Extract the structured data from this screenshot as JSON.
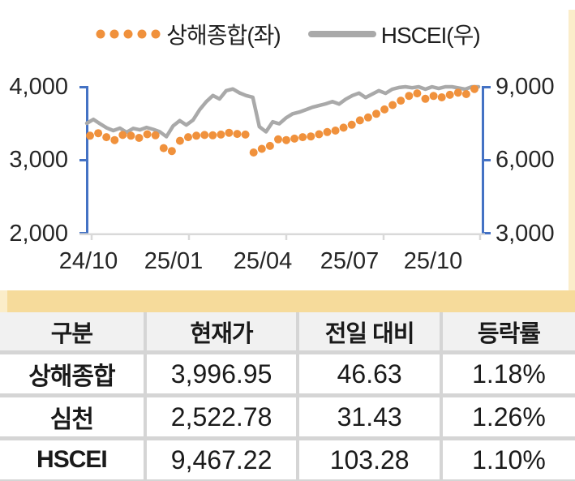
{
  "legend": {
    "series1_label": "상해종합(좌)",
    "series2_label": "HSCEI(우)"
  },
  "colors": {
    "orange_dots": "#F0913C",
    "gray_line": "#A9A9A9",
    "axis_blue": "#4472C4",
    "axis_gray": "#D9D9D9",
    "tan_bar": "#F6DB9B",
    "tan_bar_light": "#FBEDC9",
    "table_header_bg": "#F1F1F1",
    "table_grid": "#D5D5D5",
    "text": "#1A1A1A"
  },
  "chart_data": {
    "type": "line",
    "title": "",
    "legend_position": "top",
    "grid": false,
    "left_axis": {
      "label": "상해종합(좌)",
      "min": 2000,
      "max": 4000,
      "ticks": [
        "4,000",
        "3,000",
        "2,000"
      ]
    },
    "right_axis": {
      "label": "HSCEI(우)",
      "min": 3000,
      "max": 9000,
      "ticks": [
        "9,000",
        "6,000",
        "3,000"
      ]
    },
    "x_axis": {
      "ticks": [
        "24/10",
        "25/01",
        "25/04",
        "25/07",
        "25/10"
      ]
    },
    "series": [
      {
        "name": "상해종합(좌)",
        "axis": "left",
        "style": "dots",
        "color": "#F0913C",
        "values": [
          3330,
          3365,
          3310,
          3270,
          3340,
          3330,
          3300,
          3350,
          3335,
          3160,
          3120,
          3260,
          3310,
          3330,
          3340,
          3335,
          3345,
          3370,
          3355,
          3345,
          3100,
          3150,
          3190,
          3280,
          3270,
          3290,
          3310,
          3320,
          3350,
          3380,
          3400,
          3440,
          3480,
          3540,
          3580,
          3630,
          3690,
          3750,
          3810,
          3876,
          3910,
          3835,
          3875,
          3855,
          3890,
          3920,
          3900,
          3970
        ]
      },
      {
        "name": "HSCEI(우)",
        "axis": "right",
        "style": "line",
        "color": "#A9A9A9",
        "values": [
          7500,
          7660,
          7480,
          7310,
          7200,
          7300,
          7130,
          7290,
          7230,
          7330,
          7250,
          7150,
          6950,
          7390,
          7610,
          7430,
          7630,
          8060,
          8390,
          8640,
          8500,
          8840,
          8910,
          8750,
          8640,
          8570,
          7360,
          7150,
          7560,
          7480,
          7720,
          7890,
          7960,
          8060,
          8160,
          8230,
          8300,
          8390,
          8290,
          8490,
          8640,
          8740,
          8560,
          8700,
          8840,
          8730,
          8900,
          8970,
          9040,
          8960,
          9080,
          8900,
          9150,
          8930,
          9100,
          9200,
          8950,
          8900,
          9250,
          9467
        ]
      }
    ]
  },
  "table": {
    "headers": [
      "구분",
      "현재가",
      "전일 대비",
      "등락률"
    ],
    "rows": [
      {
        "cells": [
          "상해종합",
          "3,996.95",
          "46.63",
          "1.18%"
        ]
      },
      {
        "cells": [
          "심천",
          "2,522.78",
          "31.43",
          "1.26%"
        ]
      },
      {
        "cells": [
          "HSCEI",
          "9,467.22",
          "103.28",
          "1.10%"
        ]
      }
    ]
  }
}
